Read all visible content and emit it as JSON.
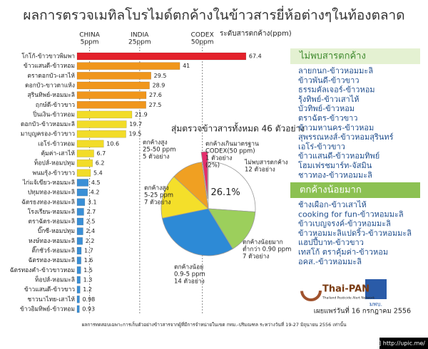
{
  "title": "ผลการตรวจเมทิลโบรไมด์ตกค้างในข้าวสารยี่ห้อต่างๆในท้องตลาด",
  "chart_data": [
    {
      "type": "barh",
      "x_label": "ระดับสารตกค้าง(ppm)",
      "categories": [
        "โกโก้-ข้าวขาวพิมพา",
        "ข้าวแสนดี-ข้าวหอม",
        "ตราดอกบัว-เสาไห้",
        "ดอกบัว-ขาวตาแห้ง",
        "สุรินทิพย์-หอมมะลิ",
        "ฤกษ์ดี-ข้าวขาว",
        "ปิ่นเงิน-ข้าวหอม",
        "ดอกบัว-ข้าวหอมมะลิ",
        "มาบุญครอง-ข้าวขาว",
        "เอโร่-ข้าวหอม",
        "คุ้มค่า-เสาไห้",
        "ท็อปส์-หอมปทุม",
        "พนมรุ้ง-ข้าวขาว",
        "ไก่แจ้เขียว-หอมมะลิ",
        "ปทุมทอง-หอมมะลิ",
        "ฉัตรธงทอง-หอมมะลิ",
        "โรงเรียน-หอมมะลิ",
        "ตราฉัตร-หอมมะลิ",
        "บิ๊กซี-หอมปทุม",
        "หงษ์ทอง-หอมมะลิ",
        "ติ๊กชัวร์-หอมมะลิ",
        "ฉัตรทอง-หอมมะลิ",
        "ฉัตรทองคำ-ข้าวขาวหอม",
        "ท็อปส์-หอมมะลิ",
        "ข้าวแสนดี-ข้าวขาว",
        "ชาวนาไทย-เสาไห้",
        "ข้าวอิมทิพย์-ข้าวหอม"
      ],
      "values": [
        67.4,
        41,
        29.5,
        28.9,
        27.6,
        27.5,
        21.9,
        19.7,
        19.5,
        10.6,
        6.7,
        6.2,
        5.4,
        4.5,
        4.2,
        3.1,
        2.7,
        2.5,
        2.4,
        2.2,
        1.7,
        1.6,
        1.5,
        1.3,
        1.2,
        0.98,
        0.93
      ],
      "colors": [
        "#e3202a",
        "#f0961c",
        "#f0961c",
        "#f0961c",
        "#f0961c",
        "#f0961c",
        "#f2dc28",
        "#f2dc28",
        "#f2dc28",
        "#f2dc28",
        "#f2dc28",
        "#f2dc28",
        "#f2dc28",
        "#3a8fd6",
        "#3a8fd6",
        "#3a8fd6",
        "#3a8fd6",
        "#3a8fd6",
        "#3a8fd6",
        "#3a8fd6",
        "#3a8fd6",
        "#3a8fd6",
        "#3a8fd6",
        "#3a8fd6",
        "#3a8fd6",
        "#3a8fd6",
        "#3a8fd6"
      ],
      "xlim": [
        0,
        70
      ],
      "reference_lines": [
        {
          "label": "CHINA",
          "sublabel": "5ppm",
          "value": 5
        },
        {
          "label": "INDIA",
          "sublabel": "25ppm",
          "value": 25
        },
        {
          "label": "CODEX",
          "sublabel": "50ppm",
          "value": 50
        }
      ]
    },
    {
      "type": "pie",
      "title": "สุ่มตรวจข้าวสารทั้งหมด 46 ตัวอย่าง",
      "categories": [
        [
          "ไม่พบสารตกค้าง",
          "12 ตัวอย่าง"
        ],
        [
          "ตกค้างน้อยมาก",
          "ต่ำกว่า 0.90 ppm",
          "7 ตัวอย่าง"
        ],
        [
          "ตกค้างน้อย",
          "0.9-5 ppm",
          "14 ตัวอย่าง"
        ],
        [
          "ตกค้างสูง",
          "5-25 ppm",
          "7 ตัวอย่าง"
        ],
        [
          "ตกค้างสูง",
          "25-50 ppm",
          "5 ตัวอย่าง"
        ],
        [
          "ตกค้างเกินมาตรฐาน",
          "CODEX(50 ppm)",
          "1 ตัวอย่าง",
          "(2%)"
        ]
      ],
      "values": [
        12,
        7,
        14,
        7,
        5,
        1
      ],
      "colors": [
        "#ffffff",
        "#9ccf5c",
        "#2d8ad6",
        "#f4df2a",
        "#f0a022",
        "#e42d6c"
      ],
      "annotation": "26.1%"
    }
  ],
  "lists": [
    {
      "title": "ไม่พบสารตกค้าง",
      "items": [
        "ลายกนก-ข้าวหอมมะลิ",
        "ข้าวพันดี-ข้าวขาว",
        "ธรรมคัลเจอร์-ข้าวหอม",
        "รุ้งทิพย์-ข้าวเสาไห้",
        "บัวทิพย์-ข้าวหอม",
        "ตราฉัตร-ข้าวขาว",
        "ข้าวมหานคร-ข้าวหอม",
        "สุพรรณหงส์-ข้าวหอมสุรินทร์",
        "เอโร่-ข้าวขาว",
        "ข้าวแสนดี-ข้าวหอมทิพย์",
        "โฮมเฟรชมาร์ท-จัสมิน",
        "ชาวทอง-ข้าวหอมมะลิ"
      ]
    },
    {
      "title": "ตกค้างน้อยมาก",
      "items": [
        "ช้างเผือก-ข้าวเสาไห้",
        "cooking for fun-ข้าวหอมมะลิ",
        "ข้าวเบญจรงค์-ข้าวหอมมะลิ",
        "ข้าวหอมมะลิแปดริ้ว-ข้าวหอมมะลิ",
        "แฮปปี้บาท-ข้าวขาว",
        "เทสโก้ ตราคุ้มค่า-ข้าวหอม",
        "อคส.-ข้าวหอมมะลิ"
      ]
    }
  ],
  "footer": {
    "logo_name": "Thai-PAN",
    "logo_sub": "Thailand Pesticide Alert Network",
    "logo2": "มพบ.",
    "date": "เผยแพร่วันที่ 16 กรกฎาคม 2556",
    "note": "ผลการทดสอบเฉพาะการเก็บตัวอย่างข้าวสารจากผู้ที่มีการจำหน่ายในเขต กทม.-ปริมณฑล ระหว่างวันที่ 19-27 มิถุนายน 2556 เท่านั้น",
    "watermark": "[960x754] http://upic.me/"
  }
}
